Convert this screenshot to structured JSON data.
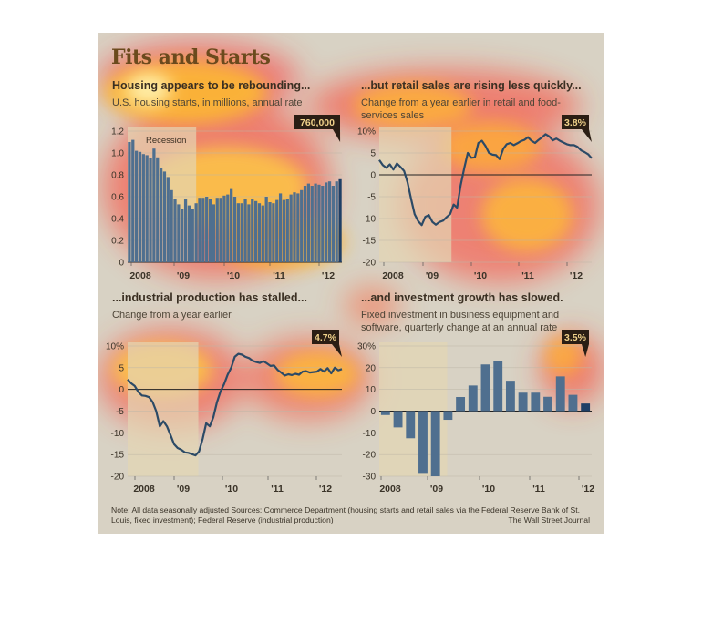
{
  "page": {
    "title": "Fits and Starts",
    "footer": "Note: All data seasonally adjusted    Sources: Commerce Department (housing starts and retail sales via the Federal Reserve Bank of St. Louis, fixed investment); Federal Reserve (industrial production)",
    "source": "The Wall Street Journal"
  },
  "colors": {
    "background": "#d8d2c4",
    "recession": "#e4d5b4",
    "bar": "#4f6f8f",
    "line": "#2c4a66",
    "callout": "#2b1e14",
    "title": "#6b4a1d"
  },
  "chart_data": [
    {
      "type": "bar",
      "title": "Housing appears to be rebounding...",
      "subtitle": "U.S. housing starts, in millions, annual rate",
      "annotation": "Recession",
      "callout": "760,000",
      "x_labels": [
        "2008",
        "'09",
        "'10",
        "'11",
        "'12"
      ],
      "ylim": [
        0,
        1.2
      ],
      "yticks": [
        "1.2",
        "1.0",
        "0.8",
        "0.6",
        "0.4",
        "0.2",
        "0"
      ],
      "values": [
        1.1,
        1.12,
        1.02,
        1.01,
        0.99,
        0.98,
        0.95,
        1.04,
        0.96,
        0.86,
        0.83,
        0.78,
        0.66,
        0.58,
        0.53,
        0.49,
        0.58,
        0.52,
        0.49,
        0.54,
        0.59,
        0.59,
        0.6,
        0.58,
        0.53,
        0.59,
        0.59,
        0.61,
        0.62,
        0.67,
        0.6,
        0.54,
        0.54,
        0.58,
        0.53,
        0.58,
        0.56,
        0.54,
        0.52,
        0.6,
        0.55,
        0.54,
        0.57,
        0.63,
        0.57,
        0.58,
        0.62,
        0.64,
        0.63,
        0.66,
        0.7,
        0.72,
        0.7,
        0.72,
        0.71,
        0.7,
        0.73,
        0.74,
        0.7,
        0.74,
        0.76
      ]
    },
    {
      "type": "line",
      "title": "...but retail sales are rising less quickly...",
      "subtitle": "Change from a year earlier in retail and food-services sales",
      "callout": "3.8%",
      "x_labels": [
        "2008",
        "'09",
        "'10",
        "'11",
        "'12"
      ],
      "ylim": [
        -20,
        10
      ],
      "yticks": [
        "10%",
        "5",
        "0",
        "-5",
        "-10",
        "-15",
        "-20"
      ],
      "values": [
        3.4,
        2.2,
        1.6,
        2.4,
        1.2,
        2.6,
        1.8,
        0.9,
        -1.8,
        -5.5,
        -9.0,
        -10.6,
        -11.5,
        -9.6,
        -9.2,
        -10.8,
        -11.4,
        -10.8,
        -10.5,
        -9.7,
        -9.0,
        -6.8,
        -7.5,
        -2.4,
        1.5,
        5.0,
        3.9,
        4.0,
        7.3,
        7.8,
        6.6,
        5.0,
        4.6,
        4.5,
        3.6,
        5.9,
        7.0,
        7.3,
        6.8,
        7.2,
        7.7,
        8.0,
        8.6,
        7.8,
        7.3,
        8.0,
        8.6,
        9.3,
        8.8,
        7.9,
        8.3,
        7.8,
        7.4,
        7.0,
        6.8,
        6.8,
        6.4,
        5.6,
        5.2,
        4.7,
        3.8
      ]
    },
    {
      "type": "line",
      "title": "...industrial production has stalled...",
      "subtitle": "Change from a year earlier",
      "callout": "4.7%",
      "x_labels": [
        "2008",
        "'09",
        "'10",
        "'11",
        "'12"
      ],
      "ylim": [
        -20,
        10
      ],
      "yticks": [
        "10%",
        "5",
        "0",
        "-5",
        "-10",
        "-15",
        "-20"
      ],
      "values": [
        2.3,
        1.4,
        0.8,
        -0.6,
        -1.4,
        -1.5,
        -1.8,
        -2.9,
        -5.0,
        -8.5,
        -7.3,
        -8.5,
        -10.5,
        -12.6,
        -13.5,
        -13.9,
        -14.5,
        -14.6,
        -14.9,
        -15.2,
        -14.3,
        -11.4,
        -7.8,
        -8.5,
        -6.4,
        -3.0,
        -0.5,
        1.2,
        3.4,
        5.0,
        7.5,
        8.2,
        8.0,
        7.5,
        7.2,
        6.6,
        6.3,
        6.1,
        6.5,
        6.0,
        5.4,
        5.5,
        4.5,
        3.9,
        3.2,
        3.5,
        3.3,
        3.6,
        3.4,
        4.1,
        4.2,
        3.9,
        4.0,
        4.1,
        4.7,
        4.1,
        4.9,
        3.7,
        5.0,
        4.4,
        4.7
      ]
    },
    {
      "type": "bar",
      "title": "...and investment growth has slowed.",
      "subtitle": "Fixed investment in business equipment and software, quarterly change at an annual rate",
      "callout": "3.5%",
      "x_labels": [
        "2008",
        "'09",
        "'10",
        "'11",
        "'12"
      ],
      "ylim": [
        -30,
        30
      ],
      "yticks": [
        "30%",
        "20",
        "10",
        "0",
        "-10",
        "-20",
        "-30"
      ],
      "values": [
        -1.8,
        -7.5,
        -12.5,
        -28.9,
        -30.0,
        -4.0,
        6.5,
        11.8,
        21.5,
        23.0,
        14.0,
        8.5,
        8.5,
        6.6,
        16.0,
        7.5,
        3.5
      ]
    }
  ]
}
